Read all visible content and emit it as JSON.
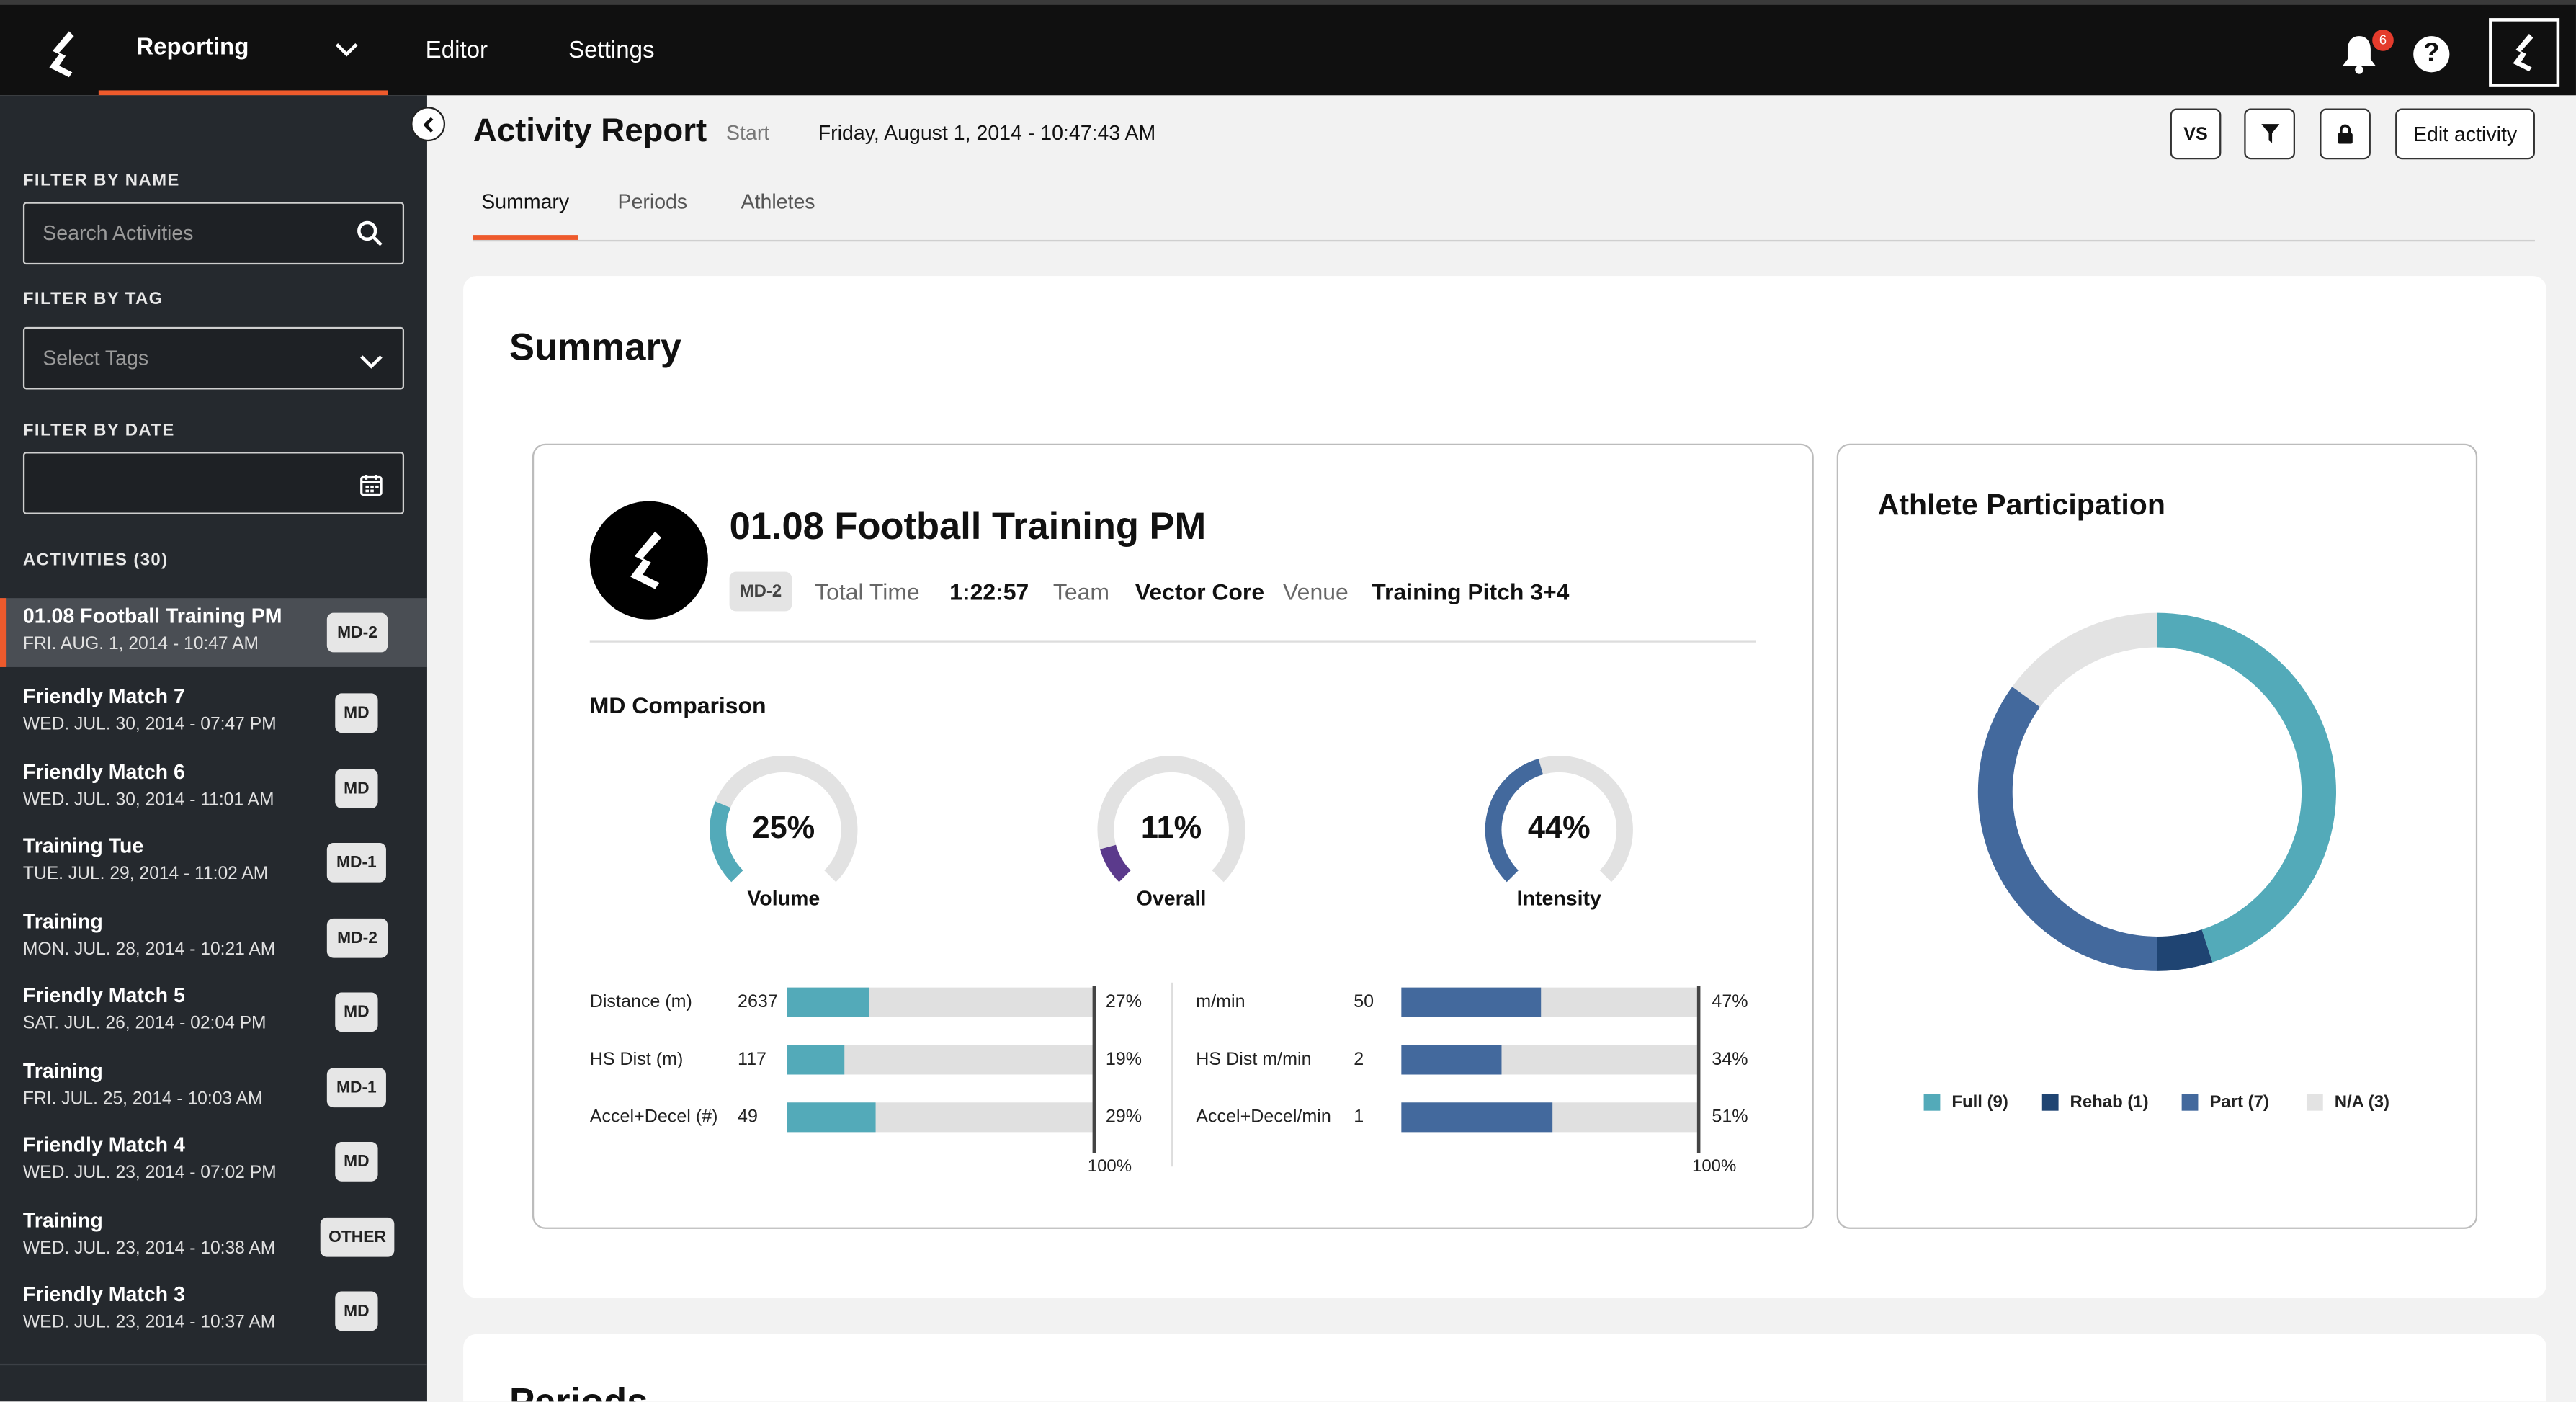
{
  "topbar": {
    "nav": [
      {
        "label": "Reporting"
      },
      {
        "label": "Editor"
      },
      {
        "label": "Settings"
      }
    ],
    "notification_count": "6",
    "help_label": "?"
  },
  "sidebar": {
    "filter_name_label": "FILTER BY NAME",
    "search_placeholder": "Search Activities",
    "filter_tag_label": "FILTER BY TAG",
    "tags_placeholder": "Select Tags",
    "filter_date_label": "FILTER BY DATE",
    "activities_label": "ACTIVITIES (30)",
    "activities": [
      {
        "name": "01.08 Football Training PM",
        "date": "FRI. AUG. 1, 2014 - 10:47 AM",
        "tag": "MD-2"
      },
      {
        "name": "Friendly Match 7",
        "date": "WED. JUL. 30, 2014 - 07:47 PM",
        "tag": "MD"
      },
      {
        "name": "Friendly Match 6",
        "date": "WED. JUL. 30, 2014 - 11:01 AM",
        "tag": "MD"
      },
      {
        "name": "Training Tue",
        "date": "TUE. JUL. 29, 2014 - 11:02 AM",
        "tag": "MD-1"
      },
      {
        "name": "Training",
        "date": "MON. JUL. 28, 2014 - 10:21 AM",
        "tag": "MD-2"
      },
      {
        "name": "Friendly Match 5",
        "date": "SAT. JUL. 26, 2014 - 02:04 PM",
        "tag": "MD"
      },
      {
        "name": "Training",
        "date": "FRI. JUL. 25, 2014 - 10:03 AM",
        "tag": "MD-1"
      },
      {
        "name": "Friendly Match 4",
        "date": "WED. JUL. 23, 2014 - 07:02 PM",
        "tag": "MD"
      },
      {
        "name": "Training",
        "date": "WED. JUL. 23, 2014 - 10:38 AM",
        "tag": "OTHER"
      },
      {
        "name": "Friendly Match 3",
        "date": "WED. JUL. 23, 2014 - 10:37 AM",
        "tag": "MD"
      }
    ]
  },
  "header": {
    "title": "Activity Report",
    "start_label": "Start",
    "start_value": "Friday, August 1, 2014 - 10:47:43 AM",
    "vs_label": "VS",
    "edit_label": "Edit activity",
    "tabs": [
      {
        "label": "Summary"
      },
      {
        "label": "Periods"
      },
      {
        "label": "Athletes"
      }
    ]
  },
  "summary": {
    "title": "Summary",
    "activity": {
      "title": "01.08 Football Training PM",
      "md": "MD-2",
      "total_time_label": "Total Time",
      "total_time": "1:22:57",
      "team_label": "Team",
      "team": "Vector Core",
      "venue_label": "Venue",
      "venue": "Training Pitch 3+4"
    },
    "md_comparison_label": "MD Comparison",
    "gauges": [
      {
        "label": "Volume",
        "value": 25,
        "text": "25%",
        "color": "#53aab9"
      },
      {
        "label": "Overall",
        "value": 11,
        "text": "11%",
        "color": "#5b3a8c"
      },
      {
        "label": "Intensity",
        "value": 44,
        "text": "44%",
        "color": "#43699d"
      }
    ],
    "volume_bars": [
      {
        "label": "Distance (m)",
        "value": "2637",
        "percent": 27,
        "percent_text": "27%"
      },
      {
        "label": "HS Dist (m)",
        "value": "117",
        "percent": 19,
        "percent_text": "19%"
      },
      {
        "label": "Accel+Decel (#)",
        "value": "49",
        "percent": 29,
        "percent_text": "29%"
      }
    ],
    "intensity_bars": [
      {
        "label": "m/min",
        "value": "50",
        "percent": 47,
        "percent_text": "47%"
      },
      {
        "label": "HS Dist m/min",
        "value": "2",
        "percent": 34,
        "percent_text": "34%"
      },
      {
        "label": "Accel+Decel/min",
        "value": "1",
        "percent": 51,
        "percent_text": "51%"
      }
    ],
    "hundred_label": "100%",
    "volume_color": "#53aab9",
    "intensity_color": "#43699d"
  },
  "participation": {
    "title": "Athlete Participation",
    "segments": [
      {
        "label": "Full (9)",
        "value": 9,
        "color": "#53aab9"
      },
      {
        "label": "Rehab (1)",
        "value": 1,
        "color": "#1f4472"
      },
      {
        "label": "Part (7)",
        "value": 7,
        "color": "#43699d"
      },
      {
        "label": "N/A (3)",
        "value": 3,
        "color": "#e3e3e3"
      }
    ]
  },
  "periods": {
    "title": "Periods"
  },
  "colors": {
    "accent": "#ee5a2c",
    "sidebar_bg": "#25292e",
    "topbar_bg": "#101010"
  }
}
